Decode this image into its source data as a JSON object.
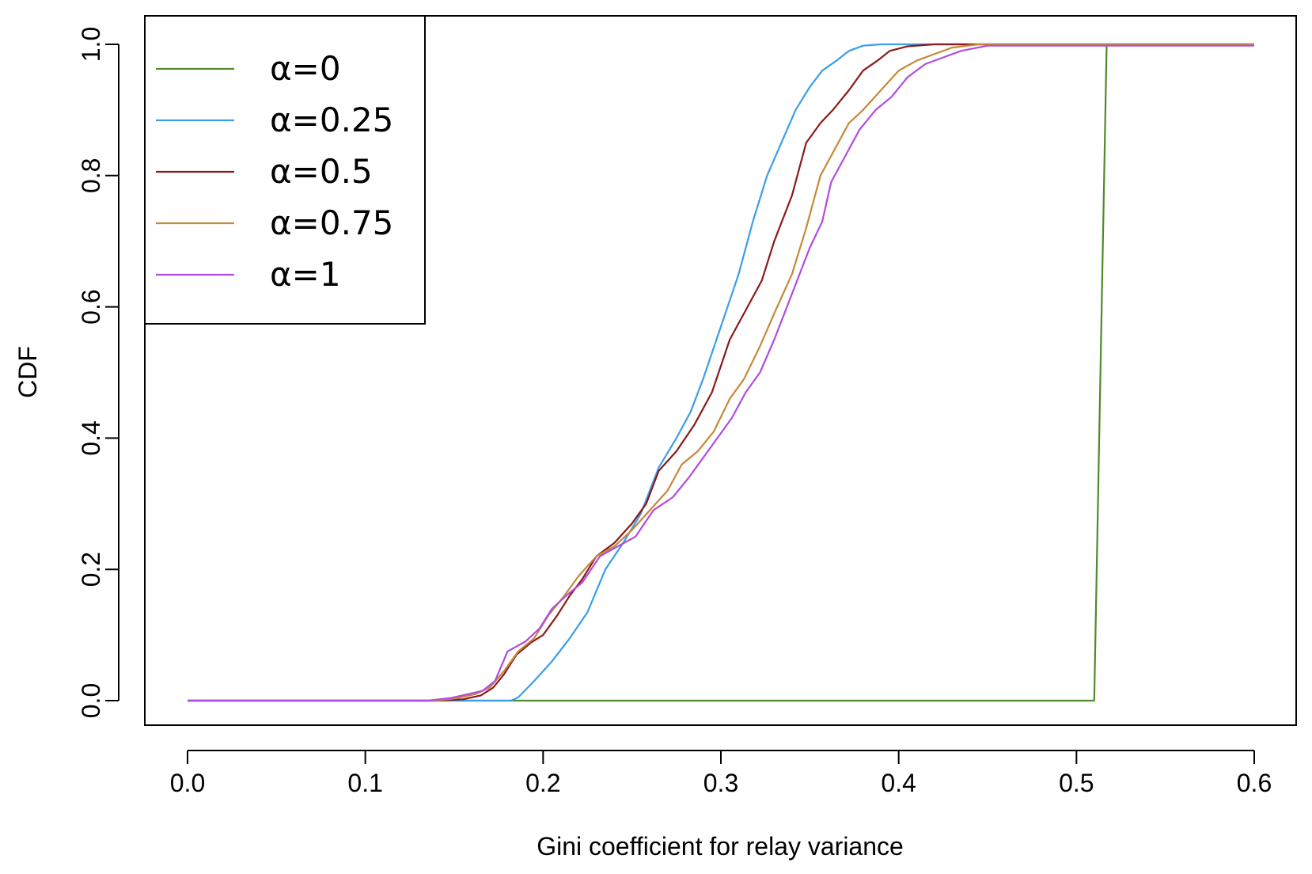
{
  "chart_data": {
    "type": "line",
    "title": "",
    "xlabel": "Gini coefficient for relay variance",
    "ylabel": "CDF",
    "xlim": [
      0.0,
      0.6
    ],
    "ylim": [
      0.0,
      1.0
    ],
    "x_ticks": [
      "0.0",
      "0.1",
      "0.2",
      "0.3",
      "0.4",
      "0.5",
      "0.6"
    ],
    "y_ticks": [
      "0.0",
      "0.2",
      "0.4",
      "0.6",
      "0.8",
      "1.0"
    ],
    "grid": false,
    "legend_position": "top-left",
    "series": [
      {
        "name": "α=0",
        "color": "#4f8a2b",
        "points": [
          [
            0.0,
            0.0
          ],
          [
            0.51,
            0.0
          ],
          [
            0.517,
            1.0
          ],
          [
            0.6,
            1.0
          ]
        ]
      },
      {
        "name": "α=0.25",
        "color": "#3a9ee8",
        "points": [
          [
            0.0,
            0.0
          ],
          [
            0.17,
            0.0
          ],
          [
            0.182,
            0.0
          ],
          [
            0.186,
            0.005
          ],
          [
            0.195,
            0.03
          ],
          [
            0.205,
            0.06
          ],
          [
            0.215,
            0.095
          ],
          [
            0.225,
            0.135
          ],
          [
            0.235,
            0.2
          ],
          [
            0.245,
            0.24
          ],
          [
            0.255,
            0.285
          ],
          [
            0.265,
            0.355
          ],
          [
            0.275,
            0.4
          ],
          [
            0.283,
            0.44
          ],
          [
            0.29,
            0.49
          ],
          [
            0.3,
            0.57
          ],
          [
            0.31,
            0.65
          ],
          [
            0.318,
            0.73
          ],
          [
            0.326,
            0.8
          ],
          [
            0.334,
            0.85
          ],
          [
            0.342,
            0.9
          ],
          [
            0.35,
            0.935
          ],
          [
            0.357,
            0.96
          ],
          [
            0.365,
            0.975
          ],
          [
            0.372,
            0.99
          ],
          [
            0.38,
            0.998
          ],
          [
            0.39,
            1.0
          ],
          [
            0.6,
            1.0
          ]
        ]
      },
      {
        "name": "α=0.5",
        "color": "#8b1a1a",
        "points": [
          [
            0.0,
            0.0
          ],
          [
            0.14,
            0.0
          ],
          [
            0.155,
            0.002
          ],
          [
            0.165,
            0.008
          ],
          [
            0.172,
            0.02
          ],
          [
            0.178,
            0.04
          ],
          [
            0.185,
            0.07
          ],
          [
            0.193,
            0.088
          ],
          [
            0.2,
            0.1
          ],
          [
            0.208,
            0.13
          ],
          [
            0.215,
            0.16
          ],
          [
            0.222,
            0.185
          ],
          [
            0.23,
            0.22
          ],
          [
            0.24,
            0.24
          ],
          [
            0.25,
            0.27
          ],
          [
            0.258,
            0.3
          ],
          [
            0.265,
            0.35
          ],
          [
            0.275,
            0.38
          ],
          [
            0.285,
            0.42
          ],
          [
            0.295,
            0.47
          ],
          [
            0.305,
            0.55
          ],
          [
            0.315,
            0.6
          ],
          [
            0.323,
            0.64
          ],
          [
            0.33,
            0.7
          ],
          [
            0.34,
            0.77
          ],
          [
            0.348,
            0.85
          ],
          [
            0.356,
            0.88
          ],
          [
            0.363,
            0.9
          ],
          [
            0.372,
            0.93
          ],
          [
            0.38,
            0.96
          ],
          [
            0.388,
            0.975
          ],
          [
            0.395,
            0.99
          ],
          [
            0.405,
            0.997
          ],
          [
            0.42,
            1.0
          ],
          [
            0.6,
            1.0
          ]
        ]
      },
      {
        "name": "α=0.75",
        "color": "#c4893a",
        "points": [
          [
            0.0,
            0.0
          ],
          [
            0.14,
            0.0
          ],
          [
            0.152,
            0.004
          ],
          [
            0.162,
            0.01
          ],
          [
            0.17,
            0.02
          ],
          [
            0.178,
            0.045
          ],
          [
            0.186,
            0.075
          ],
          [
            0.195,
            0.095
          ],
          [
            0.203,
            0.13
          ],
          [
            0.212,
            0.16
          ],
          [
            0.22,
            0.19
          ],
          [
            0.23,
            0.22
          ],
          [
            0.24,
            0.235
          ],
          [
            0.25,
            0.26
          ],
          [
            0.26,
            0.29
          ],
          [
            0.27,
            0.32
          ],
          [
            0.278,
            0.36
          ],
          [
            0.287,
            0.38
          ],
          [
            0.296,
            0.41
          ],
          [
            0.305,
            0.46
          ],
          [
            0.313,
            0.49
          ],
          [
            0.322,
            0.54
          ],
          [
            0.33,
            0.59
          ],
          [
            0.34,
            0.65
          ],
          [
            0.348,
            0.72
          ],
          [
            0.356,
            0.8
          ],
          [
            0.364,
            0.84
          ],
          [
            0.372,
            0.88
          ],
          [
            0.38,
            0.9
          ],
          [
            0.39,
            0.93
          ],
          [
            0.4,
            0.96
          ],
          [
            0.41,
            0.975
          ],
          [
            0.42,
            0.985
          ],
          [
            0.43,
            0.995
          ],
          [
            0.445,
            1.0
          ],
          [
            0.6,
            1.0
          ]
        ]
      },
      {
        "name": "α=1",
        "color": "#b04ce0",
        "points": [
          [
            0.0,
            0.0
          ],
          [
            0.135,
            0.0
          ],
          [
            0.148,
            0.004
          ],
          [
            0.158,
            0.01
          ],
          [
            0.166,
            0.015
          ],
          [
            0.173,
            0.03
          ],
          [
            0.18,
            0.075
          ],
          [
            0.19,
            0.09
          ],
          [
            0.198,
            0.11
          ],
          [
            0.205,
            0.14
          ],
          [
            0.213,
            0.16
          ],
          [
            0.222,
            0.18
          ],
          [
            0.232,
            0.22
          ],
          [
            0.242,
            0.235
          ],
          [
            0.252,
            0.25
          ],
          [
            0.262,
            0.29
          ],
          [
            0.273,
            0.31
          ],
          [
            0.282,
            0.34
          ],
          [
            0.29,
            0.37
          ],
          [
            0.298,
            0.4
          ],
          [
            0.306,
            0.43
          ],
          [
            0.314,
            0.47
          ],
          [
            0.322,
            0.5
          ],
          [
            0.33,
            0.55
          ],
          [
            0.34,
            0.62
          ],
          [
            0.35,
            0.69
          ],
          [
            0.357,
            0.73
          ],
          [
            0.362,
            0.79
          ],
          [
            0.37,
            0.83
          ],
          [
            0.378,
            0.87
          ],
          [
            0.387,
            0.9
          ],
          [
            0.396,
            0.92
          ],
          [
            0.405,
            0.95
          ],
          [
            0.415,
            0.97
          ],
          [
            0.425,
            0.98
          ],
          [
            0.435,
            0.99
          ],
          [
            0.45,
            0.998
          ],
          [
            0.6,
            0.998
          ]
        ]
      }
    ]
  }
}
